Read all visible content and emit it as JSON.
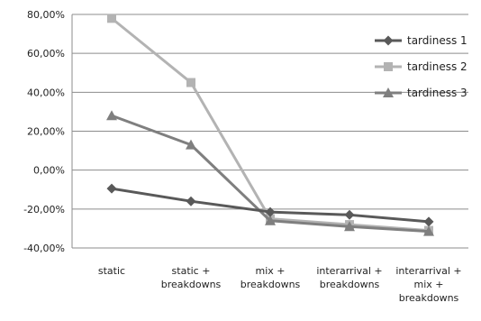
{
  "chart_data": {
    "type": "line",
    "title": "",
    "xlabel": "",
    "ylabel": "",
    "categories": [
      [
        "static"
      ],
      [
        "static +",
        "breakdowns"
      ],
      [
        "mix +",
        "breakdowns"
      ],
      [
        "interarrival +",
        "breakdowns"
      ],
      [
        "interarrival +",
        "mix +",
        "breakdowns"
      ]
    ],
    "ylim": [
      -40,
      80
    ],
    "yticks": [
      80,
      60,
      40,
      20,
      0,
      -20,
      -40
    ],
    "ytick_labels": [
      "80,00%",
      "60,00%",
      "40,00%",
      "20,00%",
      "0,00%",
      "-20,00%",
      "-40,00%"
    ],
    "grid": "horizontal",
    "legend_position": "top-right",
    "series": [
      {
        "name": "tardiness 1",
        "values": [
          -9.5,
          -16,
          -21.5,
          -23,
          -26.5
        ],
        "color": "#595959",
        "marker": "diamond"
      },
      {
        "name": "tardiness 2",
        "values": [
          78,
          45,
          -25,
          -28,
          -31
        ],
        "color": "#b3b3b3",
        "marker": "square"
      },
      {
        "name": "tardiness 3",
        "values": [
          28,
          13,
          -26,
          -29,
          -31.5
        ],
        "color": "#7f7f7f",
        "marker": "triangle"
      }
    ]
  }
}
